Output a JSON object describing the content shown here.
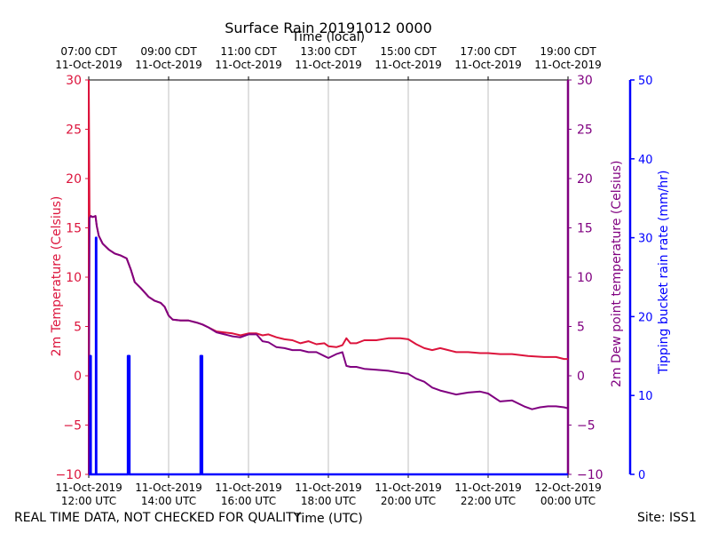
{
  "chart_data": {
    "type": "line",
    "title": "Surface Rain 20191012 0000",
    "top_xlabel": "Time (local)",
    "bottom_xlabel": "Time (UTC)",
    "left_ylabel": "2m Temperature (Celsius)",
    "right_ylabel": "2m Dew point temperature (Celsius)",
    "rain_ylabel": "Tipping bucket rain rate (mm/hr)",
    "xlim_hours_utc": [
      12,
      24
    ],
    "ylim": [
      -10,
      30
    ],
    "rain_ylim": [
      0,
      50
    ],
    "yticks": [
      -10,
      -5,
      0,
      5,
      10,
      15,
      20,
      25,
      30
    ],
    "rain_yticks": [
      0,
      10,
      20,
      30,
      40,
      50
    ],
    "grid": true,
    "bottom_ticks": [
      {
        "x": 12,
        "line1": "11-Oct-2019",
        "line2": "12:00 UTC"
      },
      {
        "x": 14,
        "line1": "11-Oct-2019",
        "line2": "14:00 UTC"
      },
      {
        "x": 16,
        "line1": "11-Oct-2019",
        "line2": "16:00 UTC"
      },
      {
        "x": 18,
        "line1": "11-Oct-2019",
        "line2": "18:00 UTC"
      },
      {
        "x": 20,
        "line1": "11-Oct-2019",
        "line2": "20:00 UTC"
      },
      {
        "x": 22,
        "line1": "11-Oct-2019",
        "line2": "22:00 UTC"
      },
      {
        "x": 24,
        "line1": "12-Oct-2019",
        "line2": "00:00 UTC"
      }
    ],
    "top_ticks": [
      {
        "x": 12,
        "line1": "07:00 CDT",
        "line2": "11-Oct-2019"
      },
      {
        "x": 14,
        "line1": "09:00 CDT",
        "line2": "11-Oct-2019"
      },
      {
        "x": 16,
        "line1": "11:00 CDT",
        "line2": "11-Oct-2019"
      },
      {
        "x": 18,
        "line1": "13:00 CDT",
        "line2": "11-Oct-2019"
      },
      {
        "x": 20,
        "line1": "15:00 CDT",
        "line2": "11-Oct-2019"
      },
      {
        "x": 22,
        "line1": "17:00 CDT",
        "line2": "11-Oct-2019"
      },
      {
        "x": 24,
        "line1": "19:00 CDT",
        "line2": "11-Oct-2019"
      }
    ],
    "series": [
      {
        "name": "2m Temperature",
        "color": "#dc143c",
        "x": [
          12.0,
          12.02,
          12.05,
          12.1,
          12.17,
          12.2,
          12.25,
          12.35,
          12.5,
          12.65,
          12.8,
          12.95,
          13.05,
          13.15,
          13.3,
          13.5,
          13.65,
          13.8,
          13.9,
          14.0,
          14.1,
          14.3,
          14.5,
          14.7,
          14.85,
          15.0,
          15.2,
          15.4,
          15.6,
          15.8,
          16.0,
          16.2,
          16.35,
          16.5,
          16.7,
          16.9,
          17.1,
          17.3,
          17.5,
          17.7,
          17.9,
          18.0,
          18.2,
          18.35,
          18.45,
          18.55,
          18.7,
          18.9,
          19.2,
          19.5,
          19.8,
          20.0,
          20.2,
          20.4,
          20.6,
          20.8,
          21.0,
          21.2,
          21.5,
          21.8,
          22.0,
          22.3,
          22.6,
          23.0,
          23.4,
          23.7,
          23.9,
          24.0
        ],
        "y": [
          30.0,
          16.0,
          16.2,
          16.1,
          16.2,
          15.2,
          14.2,
          13.4,
          12.8,
          12.4,
          12.2,
          11.9,
          10.8,
          9.5,
          8.9,
          8.0,
          7.6,
          7.4,
          7.0,
          6.1,
          5.7,
          5.6,
          5.6,
          5.4,
          5.2,
          4.9,
          4.5,
          4.4,
          4.3,
          4.1,
          4.3,
          4.3,
          4.1,
          4.2,
          3.9,
          3.7,
          3.6,
          3.3,
          3.5,
          3.2,
          3.3,
          3.0,
          2.9,
          3.1,
          3.8,
          3.3,
          3.3,
          3.6,
          3.6,
          3.8,
          3.8,
          3.7,
          3.2,
          2.8,
          2.6,
          2.8,
          2.6,
          2.4,
          2.4,
          2.3,
          2.3,
          2.2,
          2.2,
          2.0,
          1.9,
          1.9,
          1.7,
          1.7
        ]
      },
      {
        "name": "2m Dew point temperature",
        "color": "#800080",
        "x": [
          12.0,
          12.02,
          12.05,
          12.1,
          12.17,
          12.2,
          12.25,
          12.35,
          12.5,
          12.65,
          12.8,
          12.95,
          13.05,
          13.15,
          13.3,
          13.5,
          13.65,
          13.8,
          13.9,
          14.0,
          14.1,
          14.3,
          14.5,
          14.7,
          14.85,
          15.0,
          15.2,
          15.4,
          15.6,
          15.8,
          16.0,
          16.2,
          16.35,
          16.5,
          16.7,
          16.9,
          17.1,
          17.3,
          17.5,
          17.7,
          17.9,
          18.0,
          18.2,
          18.35,
          18.45,
          18.55,
          18.7,
          18.9,
          19.2,
          19.5,
          19.8,
          20.0,
          20.2,
          20.4,
          20.6,
          20.8,
          21.0,
          21.2,
          21.5,
          21.8,
          22.0,
          22.3,
          22.6,
          22.9,
          23.1,
          23.3,
          23.5,
          23.7,
          23.9,
          24.0
        ],
        "y": [
          -10.0,
          16.0,
          16.2,
          16.1,
          16.2,
          15.2,
          14.2,
          13.4,
          12.8,
          12.4,
          12.2,
          11.9,
          10.8,
          9.5,
          8.9,
          8.0,
          7.6,
          7.4,
          7.0,
          6.1,
          5.7,
          5.6,
          5.6,
          5.4,
          5.2,
          4.9,
          4.4,
          4.2,
          4.0,
          3.9,
          4.2,
          4.2,
          3.5,
          3.4,
          2.9,
          2.8,
          2.6,
          2.6,
          2.4,
          2.4,
          2.0,
          1.8,
          2.2,
          2.4,
          1.0,
          0.9,
          0.9,
          0.7,
          0.6,
          0.5,
          0.3,
          0.2,
          -0.3,
          -0.6,
          -1.2,
          -1.5,
          -1.7,
          -1.9,
          -1.7,
          -1.6,
          -1.8,
          -2.6,
          -2.5,
          -3.1,
          -3.4,
          -3.2,
          -3.1,
          -3.1,
          -3.2,
          -3.3
        ]
      },
      {
        "name": "Tipping bucket rain rate",
        "color": "#0000ff",
        "x": [
          12.0,
          12.04,
          12.04,
          12.05,
          12.05,
          12.18,
          12.18,
          12.19,
          12.19,
          12.98,
          12.98,
          13.02,
          13.02,
          14.8,
          14.8,
          14.84,
          14.84,
          24.0
        ],
        "y": [
          0,
          0,
          15,
          15,
          0,
          0,
          30,
          30,
          0,
          0,
          15,
          15,
          0,
          0,
          15,
          15,
          0,
          0
        ]
      }
    ]
  },
  "footer": {
    "disclaimer": "REAL TIME DATA, NOT CHECKED FOR QUALITY",
    "site": "Site: ISS1"
  }
}
